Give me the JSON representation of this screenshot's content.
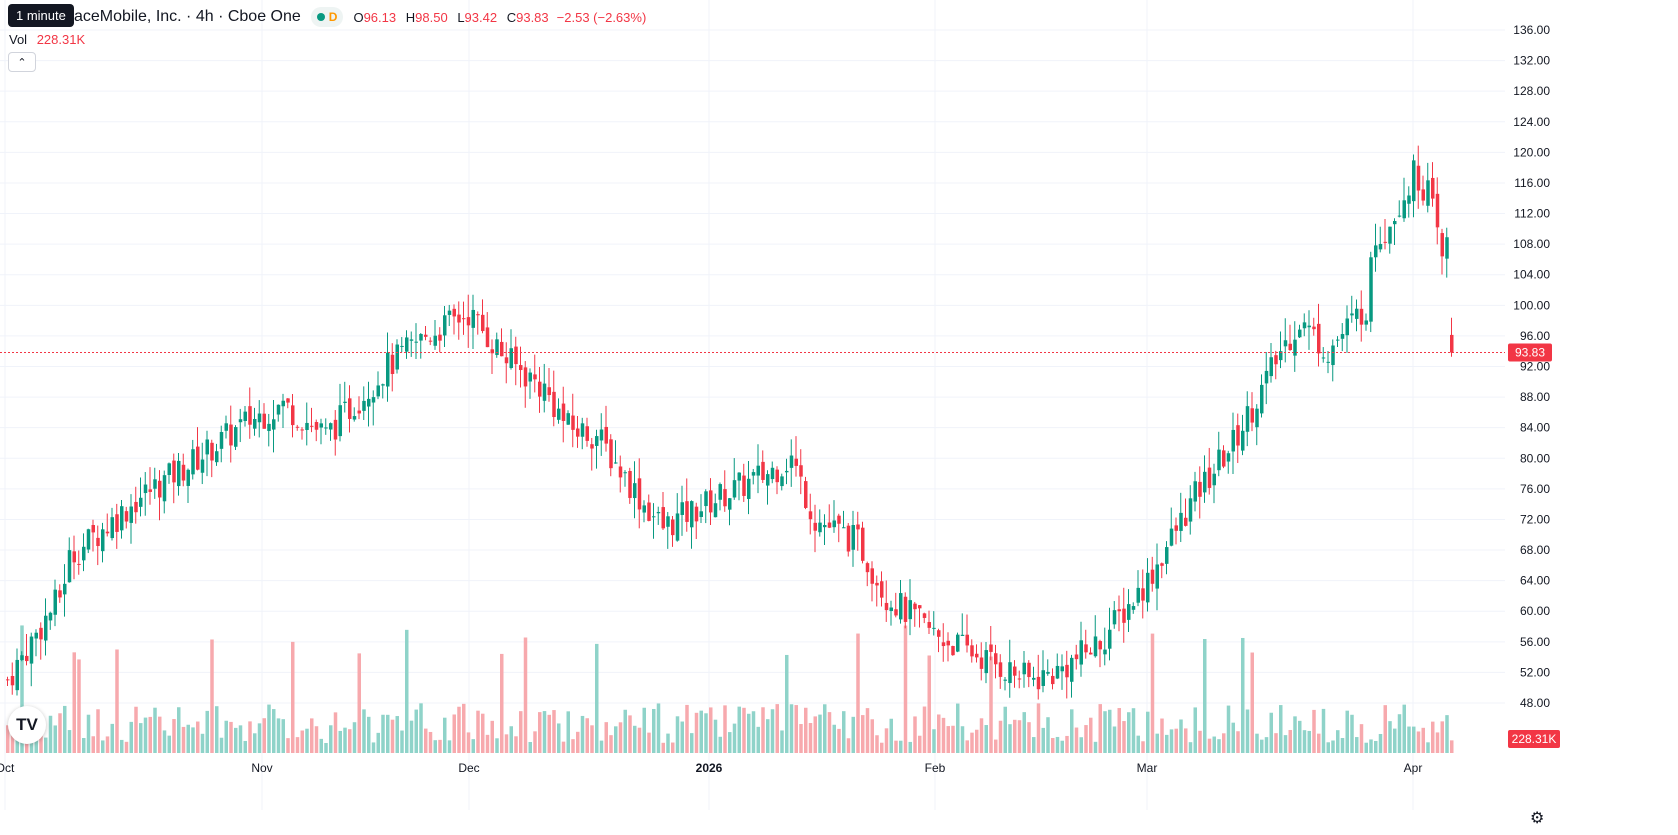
{
  "header": {
    "timeframe_chip": "1 minute",
    "symbol_title": "aceMobile, Inc. · 4h · Cboe One",
    "interval_badge": "D",
    "ohlc": {
      "open_label": "O",
      "open": "96.13",
      "high_label": "H",
      "high": "98.50",
      "low_label": "L",
      "low": "93.42",
      "close_label": "C",
      "close": "93.83",
      "change": "−2.53 (−2.63%)"
    },
    "volume_label": "Vol",
    "volume_value": "228.31K"
  },
  "badges": {
    "last_price": "93.83",
    "last_volume": "228.31K"
  },
  "colors": {
    "up": "#089981",
    "down": "#f23645",
    "up_volume": "#8fd3c9",
    "down_volume": "#f7a9ad",
    "grid": "#f0f3fa"
  },
  "icons": {
    "collapse": "chevron-up-icon",
    "logo": "tradingview-logo-icon",
    "settings": "gear-icon"
  },
  "chart_data": {
    "type": "candlestick",
    "ylim": [
      44,
      138
    ],
    "y_ticks": [
      "136.00",
      "132.00",
      "128.00",
      "124.00",
      "120.00",
      "116.00",
      "112.00",
      "108.00",
      "104.00",
      "100.00",
      "96.00",
      "92.00",
      "88.00",
      "84.00",
      "80.00",
      "76.00",
      "72.00",
      "68.00",
      "64.00",
      "60.00",
      "56.00",
      "52.00",
      "48.00"
    ],
    "x_ticks": [
      "Oct",
      "Nov",
      "Dec",
      "2026",
      "Feb",
      "Mar",
      "Apr"
    ],
    "last_price_line": 93.83,
    "grid": true,
    "candle_count": 316,
    "segments": [
      [
        0,
        51
      ],
      [
        7,
        58
      ],
      [
        11,
        62
      ],
      [
        13,
        67
      ],
      [
        28,
        75
      ],
      [
        40,
        80
      ],
      [
        51,
        85
      ],
      [
        58,
        87
      ],
      [
        67,
        83
      ],
      [
        80,
        92
      ],
      [
        88,
        96
      ],
      [
        97,
        99
      ],
      [
        105,
        93
      ],
      [
        113,
        89
      ],
      [
        118,
        84
      ],
      [
        124,
        83
      ],
      [
        134,
        74
      ],
      [
        138,
        71
      ],
      [
        150,
        75
      ],
      [
        160,
        78
      ],
      [
        165,
        80
      ],
      [
        170,
        72
      ],
      [
        179,
        69
      ],
      [
        185,
        62
      ],
      [
        195,
        57
      ],
      [
        205,
        54
      ],
      [
        215,
        51
      ],
      [
        221,
        52
      ],
      [
        230,
        56
      ],
      [
        240,
        64
      ],
      [
        250,
        75
      ],
      [
        258,
        82
      ],
      [
        264,
        89
      ],
      [
        268,
        94
      ],
      [
        272,
        98
      ],
      [
        278,
        94
      ],
      [
        286,
        100
      ],
      [
        288,
        109
      ],
      [
        290,
        110
      ],
      [
        296,
        117
      ],
      [
        299,
        115
      ],
      [
        302,
        106
      ],
      [
        309,
        120
      ],
      [
        317,
        113
      ],
      [
        326,
        115
      ],
      [
        335,
        108
      ],
      [
        342,
        104
      ],
      [
        350,
        108
      ],
      [
        357,
        104
      ],
      [
        363,
        110
      ],
      [
        370,
        114
      ],
      [
        373,
        118
      ],
      [
        375,
        121
      ],
      [
        378,
        119
      ],
      [
        384,
        118
      ],
      [
        390,
        113
      ],
      [
        395,
        115
      ],
      [
        401,
        110
      ],
      [
        407,
        106
      ],
      [
        413,
        101
      ],
      [
        419,
        103
      ],
      [
        423,
        101
      ],
      [
        431,
        97
      ],
      [
        438,
        102
      ],
      [
        444,
        97
      ],
      [
        451,
        96
      ],
      [
        456,
        98
      ],
      [
        460,
        96
      ],
      [
        462,
        86
      ],
      [
        468,
        82
      ],
      [
        474,
        84
      ],
      [
        480,
        83
      ],
      [
        486,
        85
      ],
      [
        492,
        84
      ],
      [
        497,
        83
      ],
      [
        503,
        81
      ],
      [
        508,
        86
      ],
      [
        514,
        83
      ],
      [
        519,
        78
      ],
      [
        524,
        80
      ],
      [
        529,
        84
      ],
      [
        536,
        95
      ],
      [
        540,
        102
      ],
      [
        546,
        101
      ],
      [
        549,
        97
      ],
      [
        554,
        93
      ],
      [
        560,
        89
      ],
      [
        567,
        88
      ],
      [
        573,
        89
      ],
      [
        580,
        86
      ],
      [
        588,
        88
      ],
      [
        595,
        86
      ],
      [
        601,
        96
      ],
      [
        607,
        94
      ],
      [
        612,
        97
      ],
      [
        620,
        93
      ],
      [
        626,
        88
      ],
      [
        631,
        85
      ],
      [
        637,
        89
      ],
      [
        642,
        88
      ],
      [
        648,
        87
      ],
      [
        654,
        85
      ],
      [
        660,
        96
      ],
      [
        663,
        94
      ],
      [
        668,
        93
      ],
      [
        672,
        91
      ],
      [
        678,
        92
      ],
      [
        684,
        90
      ],
      [
        691,
        84
      ],
      [
        697,
        79
      ],
      [
        702,
        75
      ],
      [
        708,
        73
      ],
      [
        713,
        79
      ],
      [
        719,
        83
      ],
      [
        725,
        82
      ],
      [
        731,
        88
      ],
      [
        737,
        92
      ],
      [
        744,
        96
      ],
      [
        750,
        100
      ],
      [
        755,
        97
      ],
      [
        760,
        97
      ],
      [
        764,
        96
      ],
      [
        767,
        95
      ],
      [
        771,
        94
      ]
    ]
  }
}
